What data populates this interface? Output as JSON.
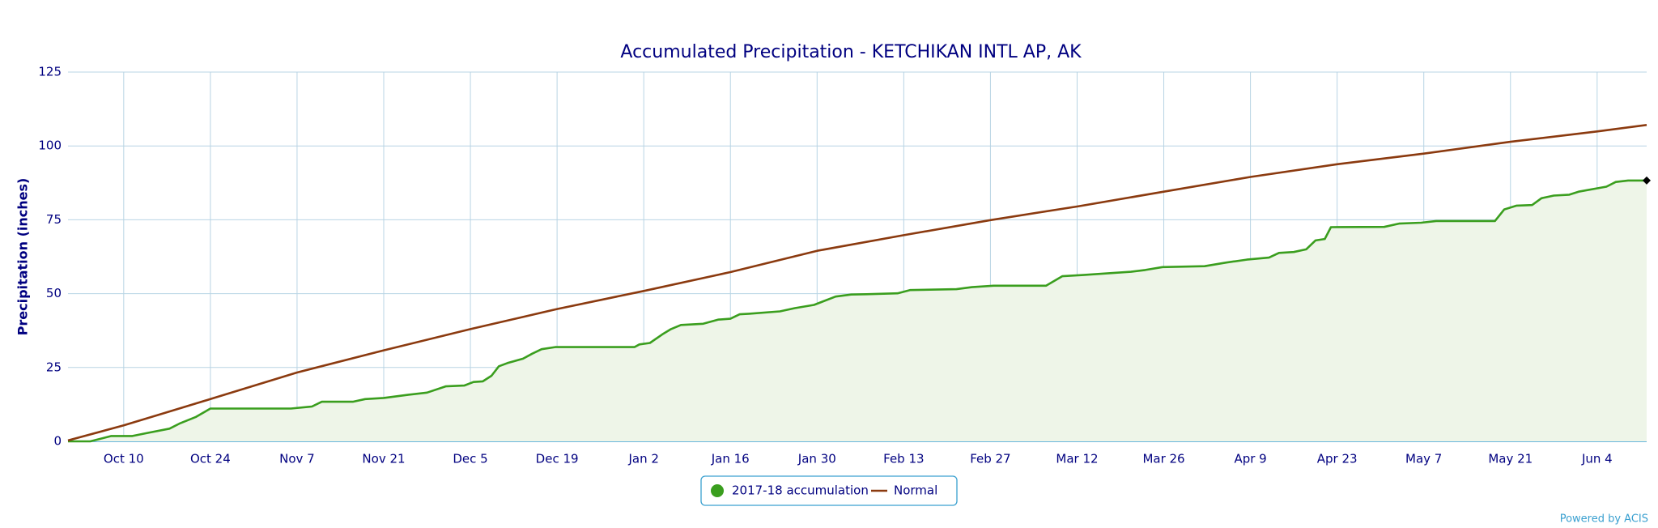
{
  "chart_data": {
    "type": "line",
    "title": "Accumulated Precipitation - KETCHIKAN INTL AP, AK",
    "y_label": "Precipitation (inches)",
    "credit": "Powered by ACIS",
    "xlim": [
      0,
      255
    ],
    "ylim": [
      0,
      125
    ],
    "yticks": [
      0,
      25,
      50,
      75,
      100,
      125
    ],
    "xticks": [
      {
        "value": 9,
        "label": "Oct 10"
      },
      {
        "value": 23,
        "label": "Oct 24"
      },
      {
        "value": 37,
        "label": "Nov 7"
      },
      {
        "value": 51,
        "label": "Nov 21"
      },
      {
        "value": 65,
        "label": "Dec 5"
      },
      {
        "value": 79,
        "label": "Dec 19"
      },
      {
        "value": 93,
        "label": "Jan 2"
      },
      {
        "value": 107,
        "label": "Jan 16"
      },
      {
        "value": 121,
        "label": "Jan 30"
      },
      {
        "value": 135,
        "label": "Feb 13"
      },
      {
        "value": 149,
        "label": "Feb 27"
      },
      {
        "value": 163,
        "label": "Mar 12"
      },
      {
        "value": 177,
        "label": "Mar 26"
      },
      {
        "value": 191,
        "label": "Apr 9"
      },
      {
        "value": 205,
        "label": "Apr 23"
      },
      {
        "value": 219,
        "label": "May 7"
      },
      {
        "value": 233,
        "label": "May 21"
      },
      {
        "value": 247,
        "label": "Jun 4"
      }
    ],
    "grid": true,
    "series": [
      {
        "name": "2017-18 accumulation",
        "color": "#3a9e1e",
        "fill": "#eef5e8",
        "x": [
          0,
          3.6,
          7,
          10.4,
          13,
          16.4,
          18,
          20.6,
          23,
          36,
          39.4,
          41,
          46,
          48,
          51,
          55,
          58,
          61,
          64,
          65.5,
          67,
          68.4,
          69.6,
          71,
          73.5,
          75,
          76.5,
          78.7,
          91.5,
          92.3,
          94,
          96,
          97.4,
          99,
          102.6,
          105,
          107,
          108.5,
          110,
          115,
          117.4,
          120.5,
          124,
          126.5,
          129,
          134,
          136,
          143.5,
          146,
          149.5,
          158,
          160.6,
          164,
          171.7,
          174,
          176.8,
          183.6,
          187,
          190.4,
          194,
          195.6,
          198,
          200,
          201.5,
          203,
          204,
          212.6,
          215,
          218.6,
          221,
          230.5,
          232,
          234,
          236.5,
          238,
          240,
          242.5,
          244,
          248.5,
          250,
          252,
          255
        ],
        "values": [
          0,
          0,
          1.8,
          1.8,
          2.9,
          4.3,
          6,
          8.2,
          11.1,
          11.1,
          11.8,
          13.4,
          13.4,
          14.3,
          14.7,
          15.8,
          16.5,
          18.6,
          18.9,
          20.1,
          20.3,
          22.2,
          25.4,
          26.5,
          28,
          29.7,
          31.2,
          31.9,
          31.9,
          32.8,
          33.3,
          36.2,
          38,
          39.4,
          39.8,
          41.2,
          41.5,
          43,
          43.2,
          44,
          45.1,
          46.2,
          49,
          49.7,
          49.8,
          50.1,
          51.2,
          51.5,
          52.2,
          52.7,
          52.7,
          55.9,
          56.3,
          57.4,
          58,
          59,
          59.3,
          60.5,
          61.5,
          62.2,
          63.8,
          64.1,
          65,
          68,
          68.5,
          72.5,
          72.6,
          73.7,
          74,
          74.6,
          74.6,
          78.5,
          79.8,
          80,
          82.3,
          83.2,
          83.5,
          84.5,
          86.2,
          87.8,
          88.3,
          88.3
        ]
      },
      {
        "name": "Normal",
        "color": "#8b3a0f",
        "x": [
          0,
          9,
          23,
          37,
          51,
          65,
          79,
          93,
          107,
          121,
          135,
          149,
          163,
          177,
          191,
          205,
          219,
          233,
          247,
          255
        ],
        "values": [
          0.3,
          5.4,
          14.3,
          23.3,
          30.8,
          38,
          44.8,
          50.9,
          57.3,
          64.5,
          69.8,
          74.9,
          79.5,
          84.5,
          89.5,
          93.8,
          97.4,
          101.4,
          104.9,
          107.1
        ]
      }
    ]
  }
}
